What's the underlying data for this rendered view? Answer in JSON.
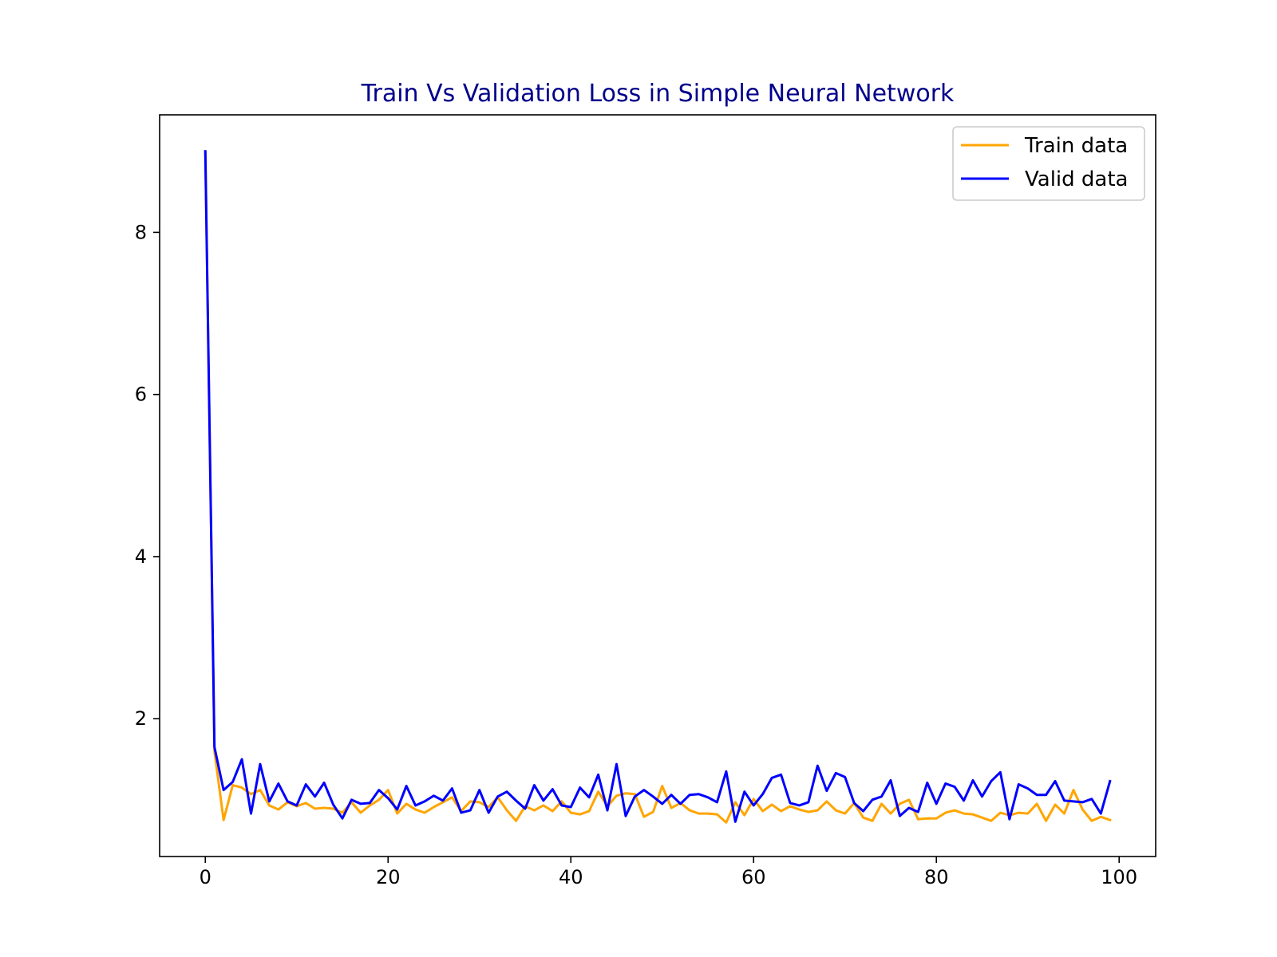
{
  "chart_data": {
    "type": "line",
    "title": "Train Vs Validation Loss in Simple Neural Network",
    "xlabel": "",
    "ylabel": "",
    "xlim": [
      -5,
      104
    ],
    "ylim": [
      0.3,
      9.45
    ],
    "xticks": [
      0,
      20,
      40,
      60,
      80,
      100
    ],
    "yticks": [
      2,
      4,
      6,
      8
    ],
    "grid": false,
    "legend_position": "top-right",
    "colors": {
      "title": "#00008b",
      "train": "#ffa500",
      "valid": "#0000ff",
      "axes": "#000000"
    },
    "x": [
      0,
      1,
      2,
      3,
      4,
      5,
      6,
      7,
      8,
      9,
      10,
      11,
      12,
      13,
      14,
      15,
      16,
      17,
      18,
      19,
      20,
      21,
      22,
      23,
      24,
      25,
      26,
      27,
      28,
      29,
      30,
      31,
      32,
      33,
      34,
      35,
      36,
      37,
      38,
      39,
      40,
      41,
      42,
      43,
      44,
      45,
      46,
      47,
      48,
      49,
      50,
      51,
      52,
      53,
      54,
      55,
      56,
      57,
      58,
      59,
      60,
      61,
      62,
      63,
      64,
      65,
      66,
      67,
      68,
      69,
      70,
      71,
      72,
      73,
      74,
      75,
      76,
      77,
      78,
      79,
      80,
      81,
      82,
      83,
      84,
      85,
      86,
      87,
      88,
      89,
      90,
      91,
      92,
      93,
      94,
      95,
      96,
      97,
      98,
      99
    ],
    "series": [
      {
        "name": "Train data",
        "color": "#ffa500",
        "values": [
          9.0,
          1.6,
          0.75,
          1.18,
          1.15,
          1.07,
          1.12,
          0.93,
          0.88,
          0.97,
          0.92,
          0.96,
          0.89,
          0.9,
          0.89,
          0.84,
          0.97,
          0.84,
          0.93,
          1.0,
          1.12,
          0.83,
          0.95,
          0.88,
          0.84,
          0.91,
          0.97,
          1.03,
          0.86,
          0.98,
          0.97,
          0.91,
          1.03,
          0.87,
          0.74,
          0.92,
          0.87,
          0.93,
          0.86,
          0.98,
          0.84,
          0.82,
          0.86,
          1.1,
          0.92,
          1.05,
          1.08,
          1.07,
          0.79,
          0.85,
          1.17,
          0.9,
          0.96,
          0.87,
          0.83,
          0.83,
          0.82,
          0.72,
          0.97,
          0.81,
          1.01,
          0.86,
          0.94,
          0.86,
          0.92,
          0.88,
          0.85,
          0.87,
          0.98,
          0.87,
          0.83,
          0.96,
          0.78,
          0.74,
          0.95,
          0.83,
          0.95,
          1.0,
          0.76,
          0.77,
          0.77,
          0.84,
          0.87,
          0.83,
          0.82,
          0.78,
          0.74,
          0.84,
          0.81,
          0.84,
          0.83,
          0.95,
          0.74,
          0.94,
          0.83,
          1.12,
          0.88,
          0.74,
          0.79,
          0.75
        ]
      },
      {
        "name": "Valid data",
        "color": "#0000ff",
        "values": [
          9.0,
          1.65,
          1.12,
          1.22,
          1.5,
          0.83,
          1.44,
          0.98,
          1.2,
          0.98,
          0.93,
          1.19,
          1.04,
          1.21,
          0.94,
          0.77,
          1.0,
          0.95,
          0.96,
          1.12,
          1.02,
          0.88,
          1.17,
          0.93,
          0.98,
          1.05,
          0.99,
          1.14,
          0.84,
          0.87,
          1.12,
          0.84,
          1.04,
          1.1,
          0.99,
          0.89,
          1.18,
          0.99,
          1.13,
          0.93,
          0.91,
          1.15,
          1.03,
          1.31,
          0.87,
          1.44,
          0.8,
          1.04,
          1.12,
          1.04,
          0.95,
          1.06,
          0.95,
          1.06,
          1.07,
          1.03,
          0.97,
          1.35,
          0.73,
          1.1,
          0.93,
          1.07,
          1.27,
          1.31,
          0.96,
          0.93,
          0.97,
          1.42,
          1.11,
          1.33,
          1.28,
          0.96,
          0.86,
          1.0,
          1.04,
          1.24,
          0.8,
          0.9,
          0.85,
          1.21,
          0.95,
          1.2,
          1.16,
          0.99,
          1.24,
          1.04,
          1.23,
          1.34,
          0.76,
          1.19,
          1.14,
          1.06,
          1.06,
          1.23,
          0.99,
          0.98,
          0.97,
          1.01,
          0.83,
          1.23
        ]
      }
    ]
  }
}
